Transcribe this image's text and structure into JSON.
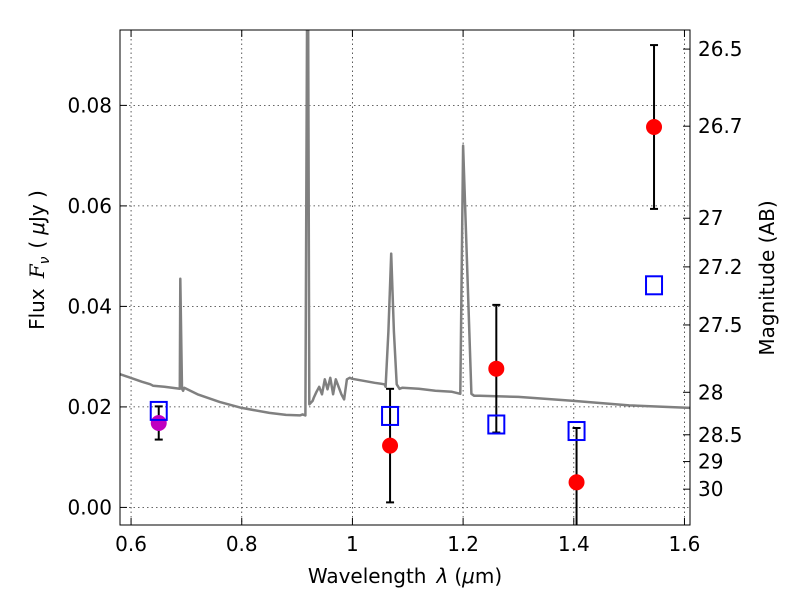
{
  "chart_data": {
    "type": "scatter",
    "title": "",
    "xlabel_text": "Wavelength",
    "xlabel_symbol": "λ",
    "xlabel_unit_open": "(",
    "xlabel_unit_mu": "μ",
    "xlabel_unit_close": "m)",
    "ylabel_text": "Flux",
    "ylabel_symbol": "F",
    "ylabel_subscript": "ν",
    "ylabel_unit_open": "(",
    "ylabel_unit_mu": "μ",
    "ylabel_unit_close": "Jy )",
    "y2label": "Magnitude (AB)",
    "xlim": [
      0.58,
      1.61
    ],
    "ylim": [
      -0.0035,
      0.095
    ],
    "grid": true,
    "x_ticks": [
      0.6,
      0.8,
      1.0,
      1.2,
      1.4,
      1.6
    ],
    "x_tick_labels": [
      "0.6",
      "0.8",
      "1",
      "1.2",
      "1.4",
      "1.6"
    ],
    "y_ticks": [
      0.0,
      0.02,
      0.04,
      0.06,
      0.08
    ],
    "y_tick_labels": [
      "0.00",
      "0.02",
      "0.04",
      "0.06",
      "0.08"
    ],
    "mag_ticks": [
      26.5,
      26.7,
      27,
      27.2,
      27.5,
      28,
      28.5,
      29,
      30
    ],
    "mag_tick_labels": [
      "26.5",
      "26.7",
      "27",
      "27.2",
      "27.5",
      "28",
      "28.5",
      "29",
      "30"
    ],
    "series": [
      {
        "kind": "line",
        "color": "#808080",
        "x": [
          0.58,
          0.62,
          0.635,
          0.64,
          0.66,
          0.688,
          0.689,
          0.692,
          0.694,
          0.696,
          0.72,
          0.76,
          0.8,
          0.85,
          0.88,
          0.905,
          0.91,
          0.915,
          0.918,
          0.92,
          0.922,
          0.928,
          0.93,
          0.935,
          0.94,
          0.945,
          0.95,
          0.955,
          0.96,
          0.965,
          0.97,
          0.975,
          0.98,
          0.985,
          0.99,
          0.995,
          1.0,
          1.02,
          1.04,
          1.058,
          1.06,
          1.065,
          1.07,
          1.075,
          1.08,
          1.085,
          1.09,
          1.12,
          1.15,
          1.18,
          1.195,
          1.2,
          1.215,
          1.22,
          1.23,
          1.3,
          1.4,
          1.5,
          1.61
        ],
        "y": [
          0.0265,
          0.025,
          0.0245,
          0.0242,
          0.024,
          0.0236,
          0.0455,
          0.0236,
          0.0232,
          0.0238,
          0.0225,
          0.021,
          0.0198,
          0.0188,
          0.0184,
          0.0183,
          0.0185,
          0.0183,
          0.095,
          0.095,
          0.0205,
          0.0212,
          0.0218,
          0.023,
          0.024,
          0.0225,
          0.0255,
          0.0235,
          0.0258,
          0.0225,
          0.0255,
          0.024,
          0.0225,
          0.0215,
          0.0255,
          0.0258,
          0.0256,
          0.0252,
          0.0248,
          0.0245,
          0.024,
          0.035,
          0.0505,
          0.035,
          0.0245,
          0.0236,
          0.0238,
          0.0236,
          0.0232,
          0.023,
          0.0226,
          0.072,
          0.0226,
          0.0222,
          0.0222,
          0.022,
          0.0212,
          0.0203,
          0.0198
        ]
      },
      {
        "kind": "points",
        "marker": "circle",
        "color": "#ff0000",
        "points": [
          {
            "x": 1.068,
            "y": 0.0123,
            "err": 0.0113
          },
          {
            "x": 1.26,
            "y": 0.0276,
            "err": 0.0127
          },
          {
            "x": 1.405,
            "y": 0.005,
            "err": 0.0108
          },
          {
            "x": 1.545,
            "y": 0.0757,
            "err": 0.0163
          }
        ]
      },
      {
        "kind": "points",
        "marker": "circle",
        "color": "#c000c0",
        "points": [
          {
            "x": 0.65,
            "y": 0.0168,
            "err": 0.0033
          }
        ]
      },
      {
        "kind": "points",
        "marker": "square",
        "color": "#0000ff",
        "points": [
          {
            "x": 0.65,
            "y": 0.0192
          },
          {
            "x": 1.068,
            "y": 0.0182
          },
          {
            "x": 1.26,
            "y": 0.0165
          },
          {
            "x": 1.405,
            "y": 0.0152
          },
          {
            "x": 1.545,
            "y": 0.0442
          }
        ]
      }
    ]
  }
}
